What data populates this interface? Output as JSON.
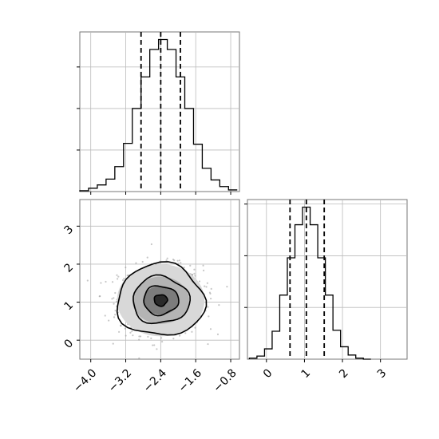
{
  "chart_data": {
    "type": "corner",
    "grid": true,
    "panels": [
      {
        "id": "hist-x",
        "type": "histogram",
        "xlim": [
          -4.25,
          -0.6
        ],
        "bin_width": 0.2,
        "bins": [
          {
            "start": -4.25,
            "count": 1
          },
          {
            "start": -4.05,
            "count": 4
          },
          {
            "start": -3.85,
            "count": 8
          },
          {
            "start": -3.65,
            "count": 15
          },
          {
            "start": -3.45,
            "count": 30
          },
          {
            "start": -3.25,
            "count": 58
          },
          {
            "start": -3.05,
            "count": 100
          },
          {
            "start": -2.85,
            "count": 138
          },
          {
            "start": -2.65,
            "count": 171
          },
          {
            "start": -2.45,
            "count": 183
          },
          {
            "start": -2.25,
            "count": 171
          },
          {
            "start": -2.05,
            "count": 138
          },
          {
            "start": -1.85,
            "count": 100
          },
          {
            "start": -1.65,
            "count": 57
          },
          {
            "start": -1.45,
            "count": 28
          },
          {
            "start": -1.25,
            "count": 14
          },
          {
            "start": -1.05,
            "count": 6
          },
          {
            "start": -0.85,
            "count": 2
          }
        ],
        "quantiles": [
          -2.85,
          -2.4,
          -1.95
        ]
      },
      {
        "id": "hist-y",
        "type": "histogram",
        "xlim": [
          -0.5,
          3.7
        ],
        "bin_width": 0.2,
        "bins": [
          {
            "start": -0.45,
            "count": 1
          },
          {
            "start": -0.25,
            "count": 3
          },
          {
            "start": -0.05,
            "count": 10
          },
          {
            "start": 0.15,
            "count": 27
          },
          {
            "start": 0.35,
            "count": 62
          },
          {
            "start": 0.55,
            "count": 98
          },
          {
            "start": 0.75,
            "count": 130
          },
          {
            "start": 0.95,
            "count": 147
          },
          {
            "start": 1.15,
            "count": 130
          },
          {
            "start": 1.35,
            "count": 98
          },
          {
            "start": 1.55,
            "count": 62
          },
          {
            "start": 1.75,
            "count": 28
          },
          {
            "start": 1.95,
            "count": 12
          },
          {
            "start": 2.15,
            "count": 4
          },
          {
            "start": 2.35,
            "count": 1
          },
          {
            "start": 2.55,
            "count": 0
          }
        ],
        "quantiles": [
          0.62,
          1.05,
          1.52
        ]
      },
      {
        "id": "scatter-xy",
        "type": "2d-density",
        "xlim": [
          -4.25,
          -0.6
        ],
        "ylim": [
          -0.5,
          3.7
        ],
        "center": [
          -2.4,
          1.05
        ],
        "contour_levels": [
          {
            "x_half_width": 1.0,
            "y_half_width": 0.95
          },
          {
            "x_half_width": 0.65,
            "y_half_width": 0.62
          },
          {
            "x_half_width": 0.4,
            "y_half_width": 0.38
          },
          {
            "x_half_width": 0.15,
            "y_half_width": 0.15
          }
        ]
      }
    ],
    "x_ticks": [
      "−4.0",
      "−3.2",
      "−2.4",
      "−1.6",
      "−0.8"
    ],
    "x_tick_values": [
      -4.0,
      -3.2,
      -2.4,
      -1.6,
      -0.8
    ],
    "y_ticks": [
      "0",
      "1",
      "2",
      "3"
    ],
    "y_tick_values": [
      0,
      1,
      2,
      3
    ],
    "y_hist_x_ticks": [
      "0",
      "1",
      "2",
      "3"
    ],
    "y_hist_x_tick_values": [
      0,
      1,
      2,
      3
    ],
    "hist_x_count_ticks": [
      50,
      100,
      150
    ],
    "hist_y_count_ticks": [
      50,
      100,
      150
    ]
  }
}
